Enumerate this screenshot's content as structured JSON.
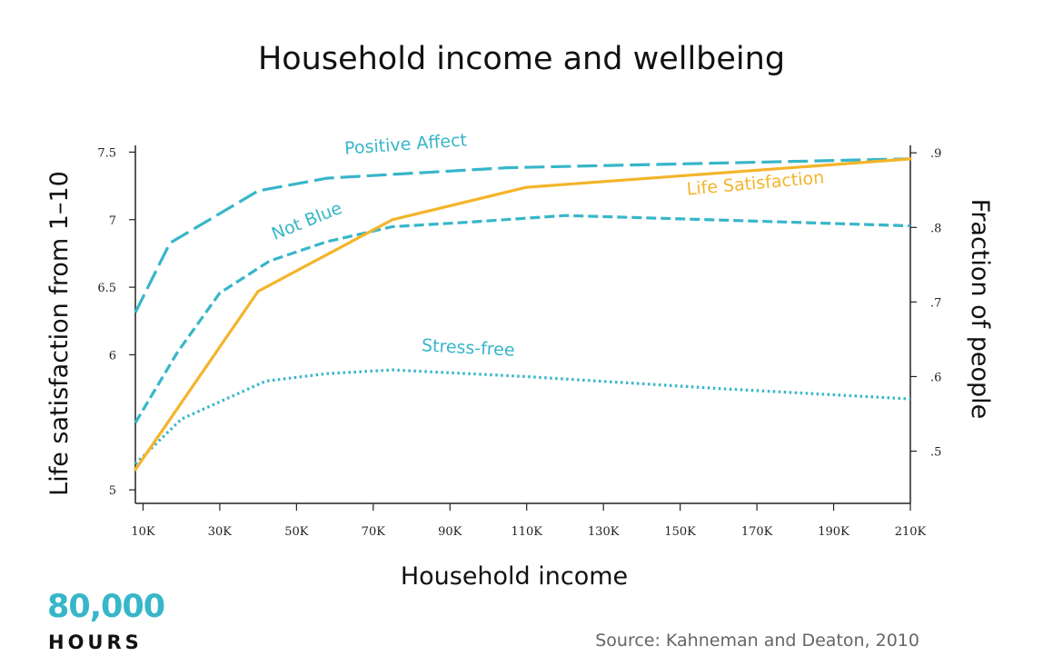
{
  "chart_data": {
    "type": "line",
    "title": "Household income and wellbeing",
    "xlabel": "Household income",
    "ylabel_left": "Life satisfaction from 1–10",
    "ylabel_right": "Fraction of people",
    "x_ticks": [
      10,
      30,
      50,
      70,
      90,
      110,
      130,
      150,
      170,
      190,
      210
    ],
    "x_tick_labels": [
      "10K",
      "30K",
      "50K",
      "70K",
      "90K",
      "110K",
      "130K",
      "150K",
      "170K",
      "190K",
      "210K"
    ],
    "xlim": [
      8,
      210
    ],
    "y_left_ticks": [
      5,
      6,
      6.5,
      7,
      7.5
    ],
    "y_left_tick_labels": [
      "5",
      "6",
      "6.5",
      "7",
      "7.5"
    ],
    "y_left_lim": [
      4.9,
      7.55
    ],
    "y_right_ticks": [
      0.5,
      0.6,
      0.7,
      0.8,
      0.9
    ],
    "y_right_tick_labels": [
      ".5",
      ".6",
      ".7",
      ".8",
      ".9"
    ],
    "y_right_lim": [
      0.43,
      0.91
    ],
    "grid": false,
    "series": [
      {
        "name": "Positive Affect",
        "axis": "right",
        "color": "#37b6c9",
        "style": "long-dash",
        "x": [
          8,
          17,
          40,
          58,
          105,
          210
        ],
        "y": [
          0.686,
          0.779,
          0.849,
          0.866,
          0.88,
          0.892
        ]
      },
      {
        "name": "Not Blue",
        "axis": "right",
        "color": "#37b6c9",
        "style": "dash",
        "x": [
          8,
          19,
          30,
          43,
          58,
          75,
          95,
          120,
          160,
          210
        ],
        "y": [
          0.538,
          0.633,
          0.712,
          0.755,
          0.781,
          0.801,
          0.807,
          0.816,
          0.81,
          0.802
        ]
      },
      {
        "name": "Stress-free",
        "axis": "right",
        "color": "#37b6c9",
        "style": "dot",
        "x": [
          8,
          20,
          42,
          58,
          75,
          110,
          160,
          210
        ],
        "y": [
          0.483,
          0.543,
          0.594,
          0.604,
          0.609,
          0.6,
          0.584,
          0.57
        ]
      },
      {
        "name": "Life Satisfaction",
        "axis": "left",
        "color": "#f4b42a",
        "style": "solid",
        "x": [
          8,
          40,
          75,
          110,
          210
        ],
        "y": [
          5.15,
          6.47,
          7,
          7.24,
          7.45
        ]
      }
    ]
  },
  "logo": {
    "number": "80,000",
    "word": "HOURS"
  },
  "source": "Source: Kahneman and Deaton, 2010"
}
